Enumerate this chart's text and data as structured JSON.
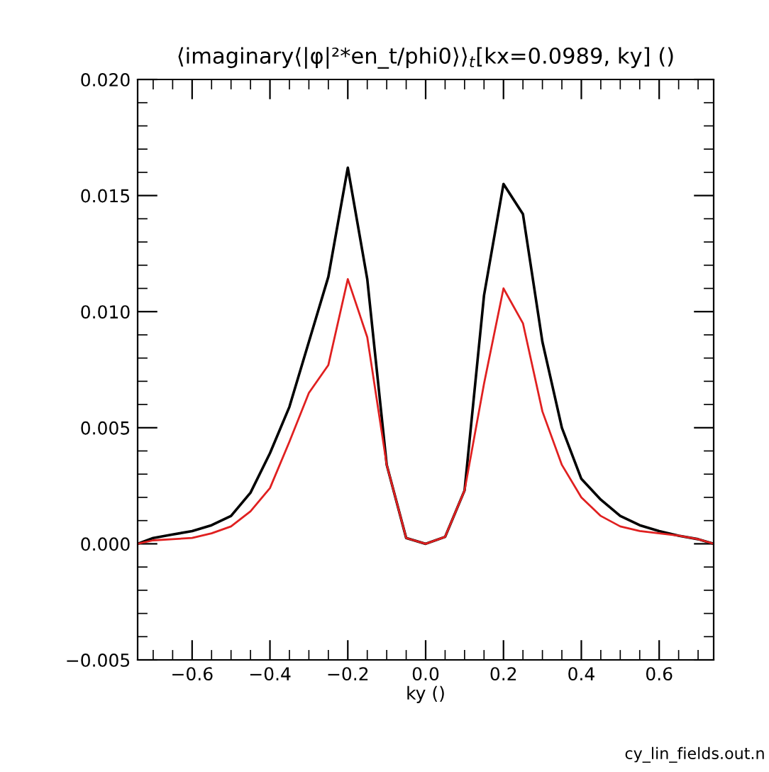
{
  "chart_data": {
    "type": "line",
    "title": "⟨imaginary⟨|φ|²*en_t/phi0⟩⟩$_{t}$[kx=0.0989, ky] ()",
    "xlabel": "ky ()",
    "x": [
      -0.74,
      -0.7,
      -0.65,
      -0.6,
      -0.55,
      -0.5,
      -0.45,
      -0.4,
      -0.35,
      -0.3,
      -0.25,
      -0.2,
      -0.15,
      -0.1,
      -0.05,
      0.0,
      0.05,
      0.1,
      0.15,
      0.2,
      0.25,
      0.3,
      0.35,
      0.4,
      0.45,
      0.5,
      0.55,
      0.6,
      0.65,
      0.7,
      0.74
    ],
    "series": [
      {
        "color": "#000000",
        "values": [
          0.0,
          0.00025,
          0.0004,
          0.00055,
          0.0008,
          0.0012,
          0.0022,
          0.0039,
          0.0059,
          0.0087,
          0.0115,
          0.0162,
          0.0114,
          0.0034,
          0.00025,
          0.0,
          0.0003,
          0.0023,
          0.0107,
          0.0155,
          0.0142,
          0.0087,
          0.005,
          0.0028,
          0.0019,
          0.0012,
          0.0008,
          0.00055,
          0.00035,
          0.0002,
          0.0
        ]
      },
      {
        "color": "#e02020",
        "values": [
          0.0,
          0.00015,
          0.0002,
          0.00025,
          0.00045,
          0.00075,
          0.0014,
          0.0024,
          0.0044,
          0.0065,
          0.0077,
          0.0114,
          0.0089,
          0.0034,
          0.00025,
          0.0,
          0.0003,
          0.0023,
          0.0069,
          0.011,
          0.0095,
          0.0057,
          0.0034,
          0.002,
          0.0012,
          0.00075,
          0.00055,
          0.00045,
          0.00035,
          0.0002,
          0.0
        ]
      }
    ],
    "xlim": [
      -0.74,
      0.74
    ],
    "xticks": [
      -0.6,
      -0.4,
      -0.2,
      {
        "value": 0.0,
        "label": "0.0"
      },
      0.2,
      0.4,
      0.6
    ],
    "ylim": [
      -0.005,
      0.02
    ],
    "yticks": [
      {
        "value": -0.005,
        "label": "−0.005"
      },
      {
        "value": 0.0,
        "label": "0.000"
      },
      0.005,
      {
        "value": 0.01,
        "label": "0.010"
      },
      0.015,
      {
        "value": 0.02,
        "label": "0.020"
      }
    ],
    "grid": false,
    "marker": "none",
    "line_style": "solid",
    "annotations": [
      "cy_lin_fields.out.n"
    ]
  }
}
